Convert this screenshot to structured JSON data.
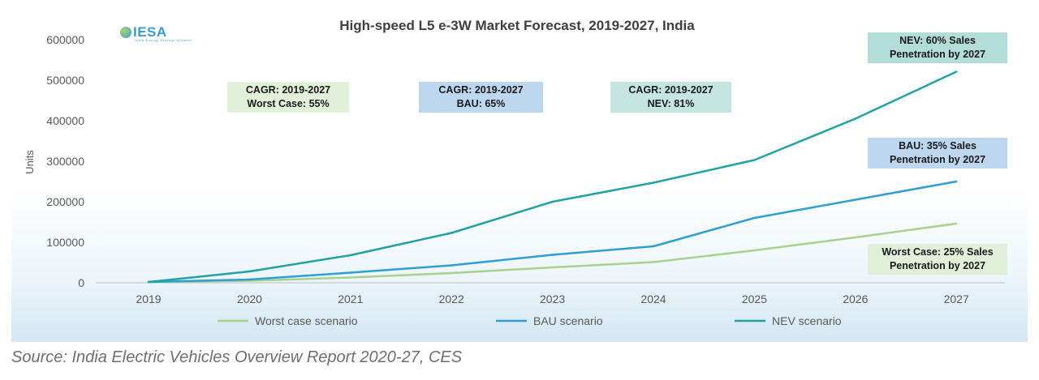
{
  "source": "Source: India Electric Vehicles Overview Report 2020-27, CES",
  "logo": {
    "text": "IESA",
    "tagline": "India Energy Storage Alliance"
  },
  "annotations": {
    "cagr_worst": [
      "CAGR: 2019-2027",
      "Worst Case: 55%"
    ],
    "cagr_bau": [
      "CAGR: 2019-2027",
      "BAU: 65%"
    ],
    "cagr_nev": [
      "CAGR: 2019-2027",
      "NEV: 81%"
    ],
    "nev_sales": [
      "NEV: 60% Sales",
      "Penetration by 2027"
    ],
    "bau_sales": [
      "BAU: 35% Sales",
      "Penetration by 2027"
    ],
    "worst_sales": [
      "Worst Case: 25% Sales",
      "Penetration by 2027"
    ]
  },
  "colors": {
    "worst": "#a9d18e",
    "bau": "#2e9fd3",
    "nev": "#22a3a3",
    "green_box": "#e2efd9",
    "blue_box": "#bdd7ee",
    "teal_box": "#c5e5e3"
  },
  "chart_data": {
    "type": "line",
    "title": "High-speed L5 e-3W Market Forecast, 2019-2027, India",
    "xlabel": "",
    "ylabel": "Units",
    "ylim": [
      0,
      600000
    ],
    "yticks": [
      0,
      100000,
      200000,
      300000,
      400000,
      500000,
      600000
    ],
    "ytick_labels": [
      "0",
      "100000",
      "200000",
      "300000",
      "400000",
      "500000",
      "600000"
    ],
    "grid": false,
    "legend_position": "bottom",
    "x": [
      "2019",
      "2020",
      "2021",
      "2022",
      "2023",
      "2024",
      "2025",
      "2026",
      "2027"
    ],
    "series": [
      {
        "name": "Worst case scenario",
        "color": "#a9d18e",
        "values": [
          2000,
          5000,
          13000,
          24000,
          38000,
          51000,
          80000,
          112000,
          146000
        ]
      },
      {
        "name": "BAU scenario",
        "color": "#2e9fd3",
        "values": [
          2000,
          8000,
          25000,
          43000,
          69000,
          90000,
          160000,
          205000,
          250000
        ]
      },
      {
        "name": "NEV scenario",
        "color": "#22a3a3",
        "values": [
          2000,
          28000,
          68000,
          123000,
          200000,
          247000,
          303000,
          405000,
          521000
        ]
      }
    ]
  }
}
